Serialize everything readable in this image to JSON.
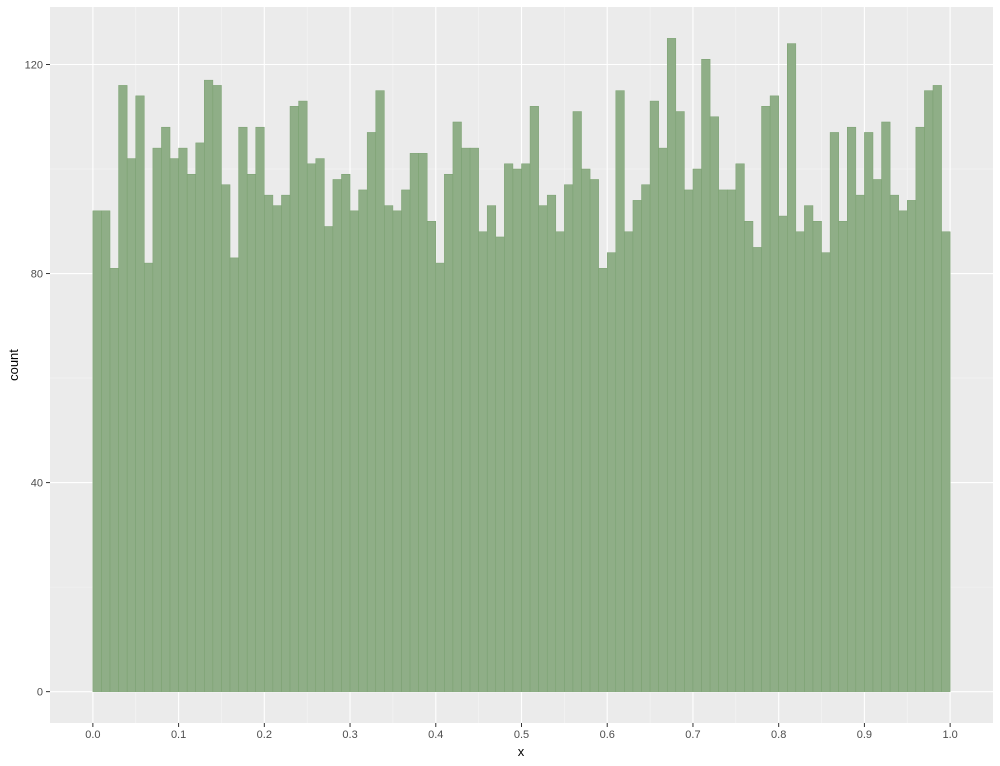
{
  "chart_data": {
    "type": "bar",
    "subtype": "histogram",
    "title": "",
    "xlabel": "x",
    "ylabel": "count",
    "xlim": [
      -0.05,
      1.05
    ],
    "ylim": [
      -6,
      131
    ],
    "x_ticks": [
      "0.0",
      "0.1",
      "0.2",
      "0.3",
      "0.4",
      "0.5",
      "0.6",
      "0.7",
      "0.8",
      "0.9",
      "1.0"
    ],
    "x_tick_values": [
      0,
      0.1,
      0.2,
      0.3,
      0.4,
      0.5,
      0.6,
      0.7,
      0.8,
      0.9,
      1.0
    ],
    "y_ticks": [
      "0",
      "40",
      "80",
      "120"
    ],
    "y_tick_values": [
      0,
      40,
      80,
      120
    ],
    "grid": true,
    "bin_width": 0.01,
    "bins": 100,
    "x_start": 0.0,
    "counts": [
      92,
      92,
      81,
      116,
      102,
      114,
      82,
      104,
      108,
      102,
      104,
      99,
      105,
      117,
      116,
      97,
      83,
      108,
      99,
      108,
      95,
      93,
      95,
      112,
      113,
      101,
      102,
      89,
      98,
      99,
      92,
      96,
      107,
      115,
      93,
      92,
      96,
      103,
      103,
      90,
      82,
      99,
      109,
      104,
      104,
      88,
      93,
      87,
      101,
      100,
      101,
      112,
      93,
      95,
      88,
      97,
      111,
      100,
      98,
      81,
      84,
      115,
      88,
      94,
      97,
      113,
      104,
      125,
      111,
      96,
      100,
      121,
      110,
      96,
      96,
      101,
      90,
      85,
      112,
      114,
      91,
      124,
      88,
      93,
      90,
      84,
      107,
      90,
      108,
      95,
      107,
      98,
      109,
      95,
      92,
      94,
      108,
      115,
      116,
      88
    ],
    "colors": {
      "panel": "#ebebeb",
      "grid_major": "#ffffff",
      "grid_minor": "#f5f5f5",
      "bar_fill": "#8fae87",
      "bar_stroke": "#79a06f"
    }
  }
}
